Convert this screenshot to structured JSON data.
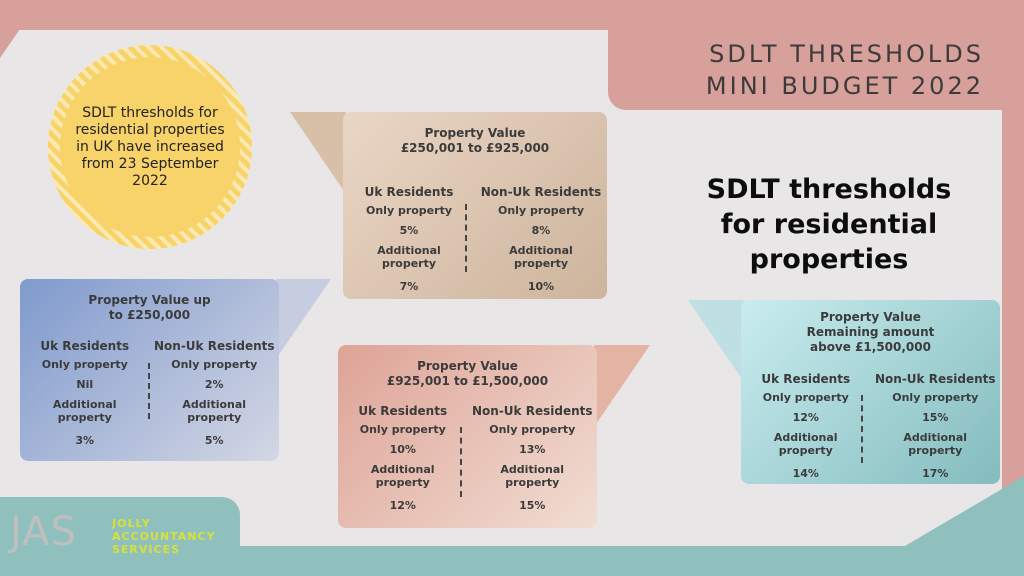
{
  "header": {
    "line1": "SDLT THRESHOLDS",
    "line2": "MINI BUDGET 2022"
  },
  "badge": {
    "text": "SDLT thresholds for residential properties in UK have increased from 23 September 2022"
  },
  "main_title": {
    "line1": "SDLT thresholds",
    "line2": "for residential",
    "line3": "properties"
  },
  "labels": {
    "uk": "Uk Residents",
    "non_uk": "Non-Uk Residents",
    "only": "Only property",
    "additional_1": "Additional",
    "additional_2": "property"
  },
  "cards": [
    {
      "title1": "Property Value up",
      "title2": "to £250,000",
      "uk_only": "Nil",
      "uk_add": "3%",
      "nonuk_only": "2%",
      "nonuk_add": "5%"
    },
    {
      "title1": "Property Value",
      "title2": "£250,001 to £925,000",
      "uk_only": "5%",
      "uk_add": "7%",
      "nonuk_only": "8%",
      "nonuk_add": "10%"
    },
    {
      "title1": "Property Value",
      "title2": "£925,001 to £1,500,000",
      "uk_only": "10%",
      "uk_add": "12%",
      "nonuk_only": "13%",
      "nonuk_add": "15%"
    },
    {
      "title1": "Property Value",
      "title2": "Remaining amount",
      "title3": "above £1,500,000",
      "uk_only": "12%",
      "uk_add": "14%",
      "nonuk_only": "15%",
      "nonuk_add": "17%"
    }
  ],
  "logo": {
    "mark": "JAS",
    "line1": "JOLLY",
    "line2": "ACCOUNTANCY",
    "line3": "SERVICES"
  }
}
